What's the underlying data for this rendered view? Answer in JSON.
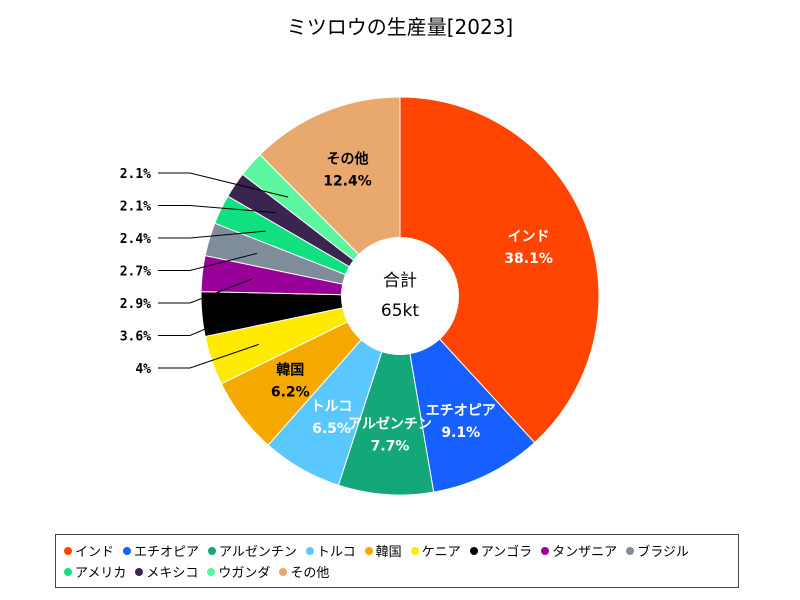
{
  "colors": {
    "インド": "#ff4500",
    "エチオピア": "#1560ff",
    "アルゼンチン": "#13a77a",
    "トルコ": "#5ac8ff",
    "韓国": "#f5a800",
    "ケニア": "#ffea00",
    "アンゴラ": "#000000",
    "タンザニア": "#990099",
    "ブラジル": "#7f8c99",
    "アメリカ": "#10e080",
    "メキシコ": "#3a2450",
    "ウガンダ": "#5cf5a0",
    "その他": "#e8a86e"
  },
  "chart_data": {
    "type": "pie",
    "variant": "donut",
    "title": "ミツロウの生産量[2023]",
    "center_label": "合計",
    "center_value": "65kt",
    "categories": [
      "インド",
      "エチオピア",
      "アルゼンチン",
      "トルコ",
      "韓国",
      "ケニア",
      "アンゴラ",
      "タンザニア",
      "ブラジル",
      "アメリカ",
      "メキシコ",
      "ウガンダ",
      "その他"
    ],
    "values": [
      38.1,
      9.1,
      7.7,
      6.5,
      6.2,
      4.0,
      3.6,
      2.9,
      2.7,
      2.4,
      2.1,
      2.1,
      12.4
    ],
    "value_labels": [
      "38.1%",
      "9.1%",
      "7.7%",
      "6.5%",
      "6.2%",
      "4%",
      "3.6%",
      "2.9%",
      "2.7%",
      "2.4%",
      "2.1%",
      "2.1%",
      "12.4%"
    ],
    "inside_labels": [
      true,
      true,
      true,
      true,
      true,
      false,
      false,
      false,
      false,
      false,
      false,
      false,
      true
    ],
    "legend": {
      "position": "bottom",
      "entries": [
        "インド",
        "エチオピア",
        "アルゼンチン",
        "トルコ",
        "韓国",
        "ケニア",
        "アンゴラ",
        "タンザニア",
        "ブラジル",
        "アメリカ",
        "メキシコ",
        "ウガンダ",
        "その他"
      ]
    }
  }
}
